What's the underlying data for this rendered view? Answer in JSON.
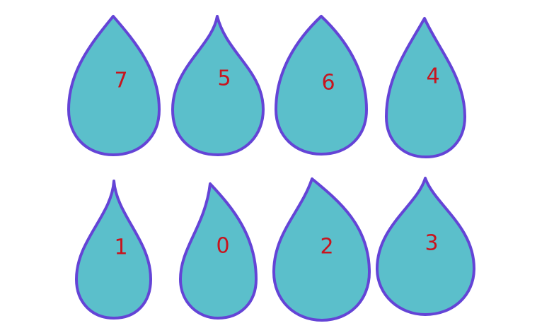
{
  "colors": {
    "drop_fill": "#5bbfcb",
    "drop_outline": "#6444d6",
    "number_color": "#c8141e",
    "background": "#ffffff"
  },
  "drops": [
    {
      "number": "7"
    },
    {
      "number": "5"
    },
    {
      "number": "6"
    },
    {
      "number": "4"
    },
    {
      "number": "1"
    },
    {
      "number": "0"
    },
    {
      "number": "2"
    },
    {
      "number": "3"
    }
  ]
}
